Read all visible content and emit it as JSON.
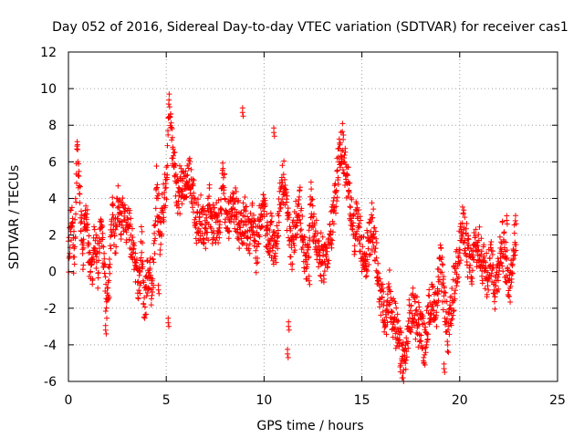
{
  "chart_data": {
    "type": "scatter",
    "title": "Day 052 of 2016, Sidereal Day-to-day VTEC variation (SDTVAR) for receiver cas1",
    "xlabel": "GPS time / hours",
    "ylabel": "SDTVAR / TECUs",
    "xlim": [
      0,
      25
    ],
    "ylim": [
      -6,
      12
    ],
    "xticks": [
      0,
      5,
      10,
      15,
      20,
      25
    ],
    "yticks": [
      -6,
      -4,
      -2,
      0,
      2,
      4,
      6,
      8,
      10,
      12
    ],
    "grid": true,
    "marker": "+",
    "color": "#ff0000",
    "series": [
      {
        "name": "SDTVAR",
        "anchors": [
          [
            0.0,
            1.0
          ],
          [
            0.15,
            3.0
          ],
          [
            0.3,
            0.5
          ],
          [
            0.45,
            7.0
          ],
          [
            0.6,
            3.5
          ],
          [
            0.75,
            1.0
          ],
          [
            0.9,
            3.5
          ],
          [
            1.05,
            1.0
          ],
          [
            1.2,
            0.0
          ],
          [
            1.35,
            2.0
          ],
          [
            1.5,
            0.5
          ],
          [
            1.65,
            2.5
          ],
          [
            1.8,
            1.0
          ],
          [
            1.95,
            -2.5
          ],
          [
            2.1,
            0.0
          ],
          [
            2.25,
            3.5
          ],
          [
            2.4,
            2.0
          ],
          [
            2.55,
            4.0
          ],
          [
            2.7,
            2.5
          ],
          [
            2.85,
            3.0
          ],
          [
            3.0,
            2.5
          ],
          [
            3.15,
            2.0
          ],
          [
            3.3,
            1.0
          ],
          [
            3.45,
            0.5
          ],
          [
            3.6,
            -1.0
          ],
          [
            3.75,
            1.5
          ],
          [
            3.9,
            -2.0
          ],
          [
            4.05,
            0.0
          ],
          [
            4.3,
            -1.0
          ],
          [
            4.5,
            4.5
          ],
          [
            4.7,
            2.0
          ],
          [
            4.9,
            4.0
          ],
          [
            5.05,
            5.5
          ],
          [
            5.15,
            9.5
          ],
          [
            5.3,
            6.5
          ],
          [
            5.45,
            5.5
          ],
          [
            5.6,
            4.0
          ],
          [
            5.8,
            5.0
          ],
          [
            6.0,
            4.5
          ],
          [
            6.2,
            5.5
          ],
          [
            6.4,
            4.0
          ],
          [
            6.6,
            2.5
          ],
          [
            6.8,
            3.0
          ],
          [
            7.0,
            2.0
          ],
          [
            7.2,
            3.5
          ],
          [
            7.4,
            2.5
          ],
          [
            7.6,
            2.5
          ],
          [
            7.8,
            3.5
          ],
          [
            7.9,
            6.0
          ],
          [
            8.0,
            3.5
          ],
          [
            8.2,
            2.5
          ],
          [
            8.4,
            4.0
          ],
          [
            8.6,
            3.0
          ],
          [
            8.8,
            2.5
          ],
          [
            9.0,
            3.0
          ],
          [
            9.2,
            2.0
          ],
          [
            9.4,
            3.0
          ],
          [
            9.6,
            1.0
          ],
          [
            9.8,
            3.0
          ],
          [
            10.0,
            3.5
          ],
          [
            10.2,
            1.5
          ],
          [
            10.4,
            2.0
          ],
          [
            10.6,
            1.0
          ],
          [
            10.8,
            4.0
          ],
          [
            11.0,
            5.0
          ],
          [
            11.2,
            3.0
          ],
          [
            11.4,
            1.0
          ],
          [
            11.6,
            2.5
          ],
          [
            11.8,
            4.0
          ],
          [
            12.0,
            1.0
          ],
          [
            12.2,
            0.0
          ],
          [
            12.4,
            4.0
          ],
          [
            12.6,
            2.0
          ],
          [
            12.8,
            1.0
          ],
          [
            13.0,
            0.5
          ],
          [
            13.2,
            1.0
          ],
          [
            13.4,
            2.0
          ],
          [
            13.6,
            3.5
          ],
          [
            13.8,
            6.0
          ],
          [
            14.0,
            7.0
          ],
          [
            14.2,
            5.0
          ],
          [
            14.4,
            4.0
          ],
          [
            14.6,
            2.0
          ],
          [
            14.8,
            3.0
          ],
          [
            15.0,
            1.0
          ],
          [
            15.2,
            0.5
          ],
          [
            15.4,
            2.0
          ],
          [
            15.6,
            2.5
          ],
          [
            15.8,
            0.0
          ],
          [
            16.0,
            -1.5
          ],
          [
            16.2,
            -3.0
          ],
          [
            16.4,
            -1.0
          ],
          [
            16.6,
            -2.5
          ],
          [
            16.8,
            -3.5
          ],
          [
            17.0,
            -4.5
          ],
          [
            17.2,
            -5.0
          ],
          [
            17.4,
            -3.0
          ],
          [
            17.6,
            -2.0
          ],
          [
            17.8,
            -2.5
          ],
          [
            18.0,
            -3.0
          ],
          [
            18.2,
            -4.0
          ],
          [
            18.4,
            -2.5
          ],
          [
            18.6,
            -1.5
          ],
          [
            18.8,
            -2.0
          ],
          [
            19.0,
            0.5
          ],
          [
            19.2,
            -1.5
          ],
          [
            19.4,
            -3.5
          ],
          [
            19.6,
            -2.0
          ],
          [
            19.8,
            0.0
          ],
          [
            20.0,
            1.5
          ],
          [
            20.2,
            2.5
          ],
          [
            20.4,
            1.0
          ],
          [
            20.6,
            0.0
          ],
          [
            20.8,
            1.5
          ],
          [
            21.0,
            1.0
          ],
          [
            21.2,
            0.5
          ],
          [
            21.4,
            0.0
          ],
          [
            21.6,
            1.0
          ],
          [
            21.8,
            -1.0
          ],
          [
            22.0,
            0.5
          ],
          [
            22.2,
            1.5
          ],
          [
            22.4,
            0.0
          ],
          [
            22.6,
            -0.5
          ],
          [
            22.8,
            2.0
          ],
          [
            22.9,
            2.0
          ]
        ],
        "outliers": [
          [
            1.9,
            -3.2
          ],
          [
            4.6,
            -1.0
          ],
          [
            5.1,
            -2.8
          ],
          [
            8.9,
            8.7
          ],
          [
            10.5,
            7.6
          ],
          [
            11.2,
            -4.5
          ],
          [
            11.25,
            -3.0
          ],
          [
            12.3,
            -0.5
          ],
          [
            15.2,
            0.3
          ],
          [
            17.1,
            -5.8
          ],
          [
            19.2,
            -5.3
          ],
          [
            22.4,
            2.8
          ]
        ]
      }
    ]
  }
}
